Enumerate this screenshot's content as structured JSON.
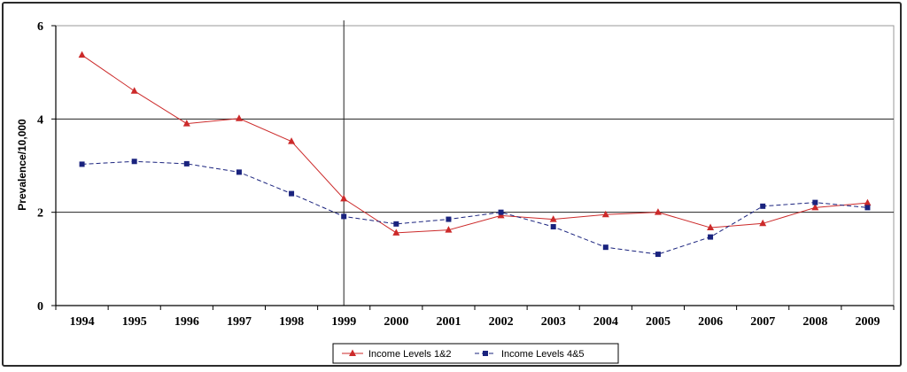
{
  "chart_data": {
    "type": "line",
    "title": "",
    "xlabel": "",
    "ylabel": "Prevalence/10,000",
    "ylim": [
      0,
      6
    ],
    "yticks": [
      "0",
      "2",
      "4",
      "6"
    ],
    "grid": "horizontal at 2 and 4, vertical line at 1999",
    "legend_position": "bottom",
    "categories": [
      "1994",
      "1995",
      "1996",
      "1997",
      "1998",
      "1999",
      "2000",
      "2001",
      "2002",
      "2003",
      "2004",
      "2005",
      "2006",
      "2007",
      "2008",
      "2009"
    ],
    "series": [
      {
        "name": "Income Levels 1&2",
        "color": "#cc2a2a",
        "marker": "triangle",
        "line": "solid",
        "values": [
          5.37,
          4.6,
          3.9,
          4.01,
          3.52,
          2.29,
          1.56,
          1.62,
          1.93,
          1.85,
          1.95,
          2.0,
          1.67,
          1.76,
          2.1,
          2.2
        ]
      },
      {
        "name": "Income Levels 4&5",
        "color": "#1a237e",
        "marker": "square",
        "line": "dashed",
        "values": [
          3.03,
          3.09,
          3.04,
          2.86,
          2.4,
          1.91,
          1.75,
          1.85,
          2.0,
          1.69,
          1.25,
          1.1,
          1.47,
          2.13,
          2.21,
          2.1
        ]
      }
    ]
  }
}
